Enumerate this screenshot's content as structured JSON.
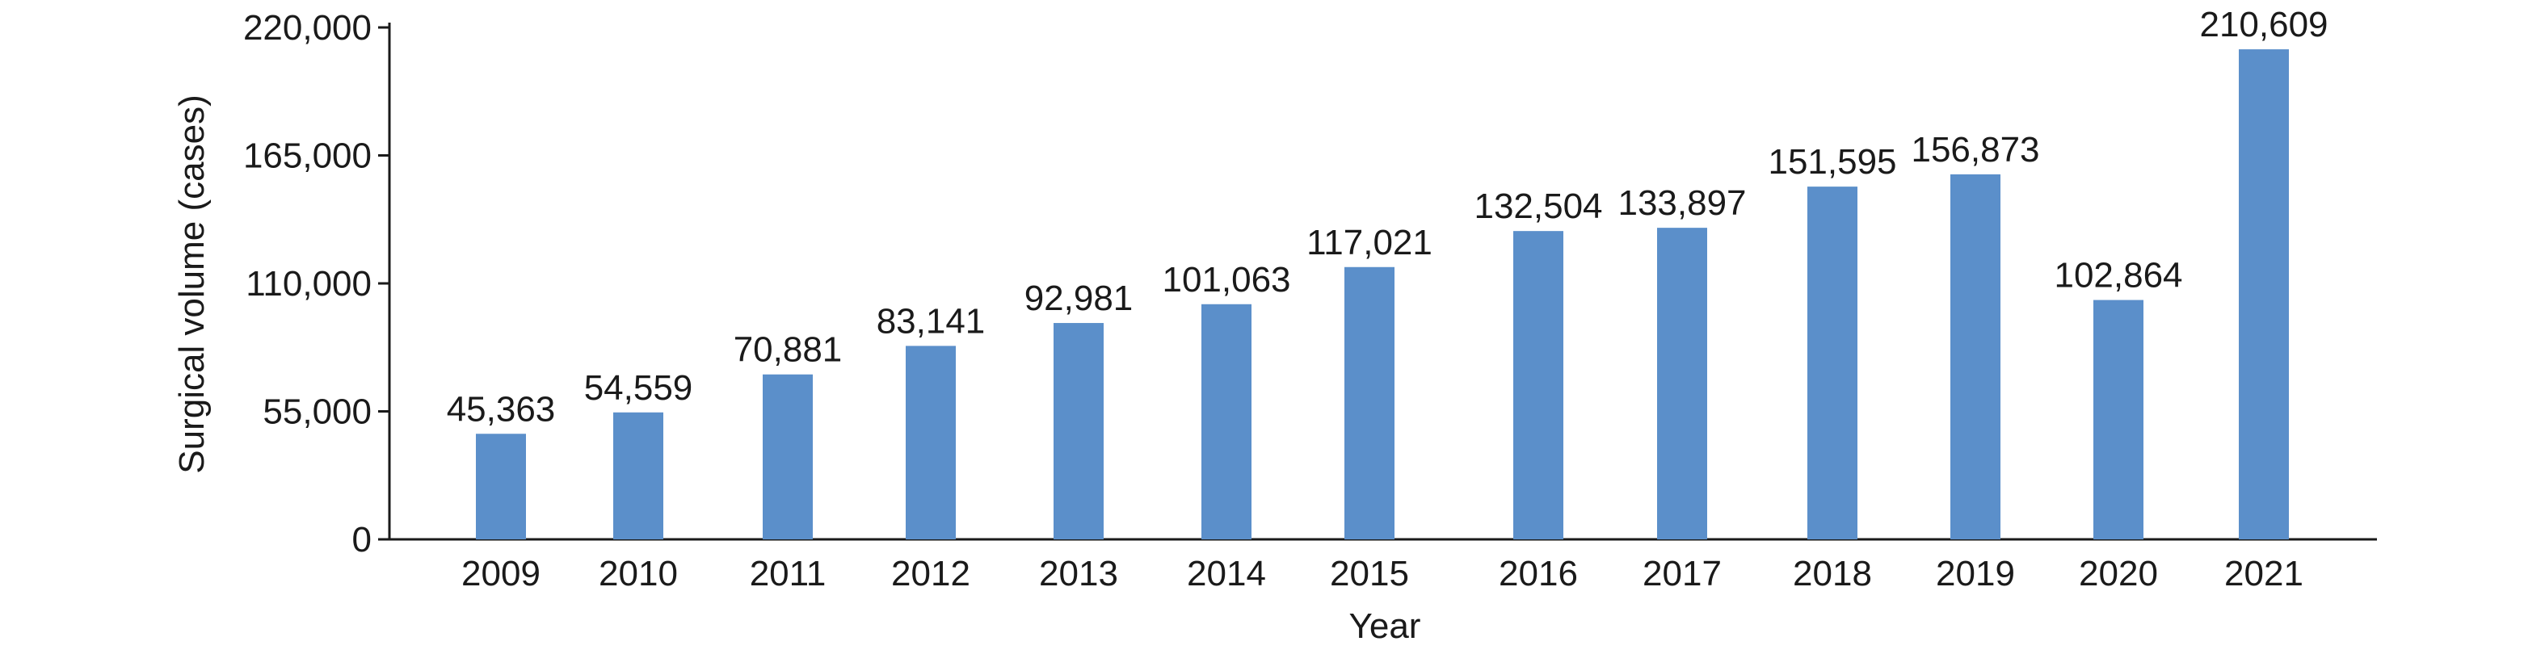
{
  "chart_data": {
    "type": "bar",
    "categories": [
      "2009",
      "2010",
      "2011",
      "2012",
      "2013",
      "2014",
      "2015",
      "2016",
      "2017",
      "2018",
      "2019",
      "2020",
      "2021"
    ],
    "values": [
      45363,
      54559,
      70881,
      83141,
      92981,
      101063,
      117021,
      132504,
      133897,
      151595,
      156873,
      102864,
      210609
    ],
    "data_labels": [
      "45,363",
      "54,559",
      "70,881",
      "83,141",
      "92,981",
      "101,063",
      "117,021",
      "132,504",
      "133,897",
      "151,595",
      "156,873",
      "102,864",
      "210,609"
    ],
    "title": "",
    "xlabel": "Year",
    "ylabel": "Surgical volume (cases)",
    "ylim": [
      0,
      220000
    ],
    "yticks": [
      0,
      55000,
      110000,
      165000,
      220000
    ],
    "ytick_labels": [
      "0",
      "55,000",
      "110,000",
      "165,000",
      "220,000"
    ],
    "grid": false,
    "legend": "none",
    "bar_color": "#5b8fca"
  }
}
